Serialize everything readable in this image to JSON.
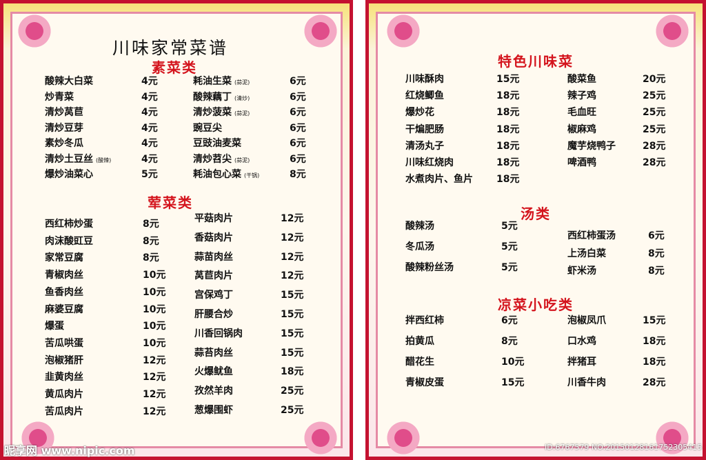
{
  "left": {
    "title": "川味家常菜谱",
    "sections": [
      {
        "heading": "素菜类",
        "columns": [
          [
            {
              "name": "酸辣大白菜",
              "price": "4元"
            },
            {
              "name": "炒青菜",
              "price": "4元"
            },
            {
              "name": "清炒莴苣",
              "price": "4元"
            },
            {
              "name": "清炒豆芽",
              "price": "4元"
            },
            {
              "name": "素炒冬瓜",
              "price": "4元"
            },
            {
              "name": "清炒土豆丝",
              "note": "(酸辣)",
              "price": "4元"
            },
            {
              "name": "爆炒油菜心",
              "price": "5元"
            }
          ],
          [
            {
              "name": "耗油生菜",
              "note": "(蒜泥)",
              "price": "6元"
            },
            {
              "name": "酸辣藕丁",
              "note": "(清炒)",
              "price": "6元"
            },
            {
              "name": "清炒菠菜",
              "note": "(蒜泥)",
              "price": "6元"
            },
            {
              "name": "豌豆尖",
              "price": "6元"
            },
            {
              "name": "豆豉油麦菜",
              "price": "6元"
            },
            {
              "name": "清炒苕尖",
              "note": "(蒜泥)",
              "price": "6元"
            },
            {
              "name": "耗油包心菜",
              "note": "(干锅)",
              "price": "8元"
            }
          ]
        ]
      },
      {
        "heading": "荤菜类",
        "columns": [
          [
            {
              "name": "西红柿炒蛋",
              "price": "8元"
            },
            {
              "name": "肉沫酸豇豆",
              "price": "8元"
            },
            {
              "name": "家常豆腐",
              "price": "8元"
            },
            {
              "name": "青椒肉丝",
              "price": "10元"
            },
            {
              "name": "鱼香肉丝",
              "price": "10元"
            },
            {
              "name": "麻婆豆腐",
              "price": "10元"
            },
            {
              "name": "爆蛋",
              "price": "10元"
            },
            {
              "name": "苦瓜哄蛋",
              "price": "10元"
            },
            {
              "name": "泡椒猪肝",
              "price": "12元"
            },
            {
              "name": "韭黄肉丝",
              "price": "12元"
            },
            {
              "name": "黄瓜肉片",
              "price": "12元"
            },
            {
              "name": "苦瓜肉片",
              "price": "12元"
            }
          ],
          [
            {
              "name": "平菇肉片",
              "price": "12元"
            },
            {
              "name": "香菇肉片",
              "price": "12元"
            },
            {
              "name": "蒜苗肉丝",
              "price": "12元"
            },
            {
              "name": "莴苣肉片",
              "price": "12元"
            },
            {
              "name": "宫保鸡丁",
              "price": "15元"
            },
            {
              "name": "肝腰合炒",
              "price": "15元"
            },
            {
              "name": "川香回锅肉",
              "price": "15元"
            },
            {
              "name": "蒜苔肉丝",
              "price": "15元"
            },
            {
              "name": "火爆鱿鱼",
              "price": "18元"
            },
            {
              "name": "孜然羊肉",
              "price": "25元"
            },
            {
              "name": "葱爆围虾",
              "price": "25元"
            }
          ]
        ]
      }
    ]
  },
  "right": {
    "sections": [
      {
        "heading": "特色川味菜",
        "columns": [
          [
            {
              "name": "川味酥肉",
              "price": "15元"
            },
            {
              "name": "红烧鲫鱼",
              "price": "18元"
            },
            {
              "name": "爆炒花",
              "price": "18元"
            },
            {
              "name": "干煸肥肠",
              "price": "18元"
            },
            {
              "name": "清汤丸子",
              "price": "18元"
            },
            {
              "name": "川味红烧肉",
              "price": "18元"
            },
            {
              "name": "水煮肉片、鱼片",
              "price": "18元"
            }
          ],
          [
            {
              "name": "酸菜鱼",
              "price": "20元"
            },
            {
              "name": "辣子鸡",
              "price": "25元"
            },
            {
              "name": "毛血旺",
              "price": "25元"
            },
            {
              "name": "椒麻鸡",
              "price": "25元"
            },
            {
              "name": "魔芋烧鸭子",
              "price": "28元"
            },
            {
              "name": "啤酒鸭",
              "price": "28元"
            }
          ]
        ]
      },
      {
        "heading": "汤类",
        "columns": [
          [
            {
              "name": "酸辣汤",
              "price": "5元"
            },
            {
              "name": "冬瓜汤",
              "price": "5元"
            },
            {
              "name": "酸辣粉丝汤",
              "price": "5元"
            }
          ],
          [
            {
              "name": "西红柿蛋汤",
              "price": "6元"
            },
            {
              "name": "上汤白菜",
              "price": "8元"
            },
            {
              "name": "虾米汤",
              "price": "8元"
            }
          ]
        ]
      },
      {
        "heading": "凉菜小吃类",
        "columns": [
          [
            {
              "name": "拌西红柿",
              "price": "6元"
            },
            {
              "name": "拍黄瓜",
              "price": "8元"
            },
            {
              "name": "醋花生",
              "price": "10元"
            },
            {
              "name": "青椒皮蛋",
              "price": "15元"
            }
          ],
          [
            {
              "name": "泡椒凤爪",
              "price": "15元"
            },
            {
              "name": "口水鸡",
              "price": "18元"
            },
            {
              "name": "拌猪耳",
              "price": "18元"
            },
            {
              "name": "川香牛肉",
              "price": "28元"
            }
          ]
        ]
      }
    ]
  },
  "watermark": {
    "site": "昵享网 www.nipic.com",
    "id": "ID:6767579 NO:20150128161752305415"
  }
}
